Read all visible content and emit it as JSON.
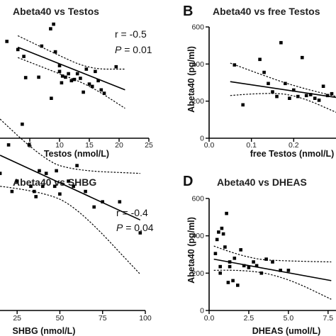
{
  "chart_data": [
    {
      "id": "A",
      "type": "scatter",
      "title": "Abeta40 vs Testos",
      "xlabel": "Testos (nmol/L)",
      "xlim": [
        0,
        25
      ],
      "xticks": [
        "5",
        "10",
        "15",
        "20",
        "25"
      ],
      "ylim": [
        0,
        600
      ],
      "stats": {
        "r": "r = -0.5",
        "p_label": "P",
        "p_value": " = 0.01"
      },
      "points": [
        [
          3,
          385
        ],
        [
          4,
          355
        ],
        [
          6.5,
          265
        ],
        [
          7,
          400
        ],
        [
          8.5,
          475
        ],
        [
          9,
          495
        ],
        [
          9.3,
          375
        ],
        [
          10,
          315
        ],
        [
          10,
          290
        ],
        [
          10.5,
          270
        ],
        [
          11,
          265
        ],
        [
          11.5,
          280
        ],
        [
          12,
          250
        ],
        [
          12.5,
          255
        ],
        [
          13,
          280
        ],
        [
          13.5,
          260
        ],
        [
          14,
          200
        ],
        [
          14.5,
          300
        ],
        [
          15,
          235
        ],
        [
          15.5,
          225
        ],
        [
          16,
          290
        ],
        [
          16.5,
          250
        ],
        [
          17,
          210
        ],
        [
          17.5,
          195
        ],
        [
          19.5,
          310
        ]
      ],
      "fit": [
        [
          3,
          395
        ],
        [
          21,
          210
        ]
      ],
      "ci_upper": [
        [
          3,
          445
        ],
        [
          9,
          370
        ],
        [
          15,
          300
        ],
        [
          21,
          300
        ]
      ],
      "ci_lower": [
        [
          3,
          350
        ],
        [
          9,
          290
        ],
        [
          15,
          230
        ],
        [
          21,
          130
        ]
      ]
    },
    {
      "id": "B",
      "type": "scatter",
      "title": "Abeta40 vs free Testos",
      "panel_letter": "B",
      "xlabel": "free Testos (nmol/L)",
      "ylabel": "Abeta40 (pg/ml)",
      "xlim": [
        0,
        0.3
      ],
      "xticks": [
        "0.0",
        "0.1",
        "0.2"
      ],
      "yticks": [
        "0",
        "200",
        "400",
        "600"
      ],
      "ylim": [
        0,
        600
      ],
      "points": [
        [
          0.06,
          395
        ],
        [
          0.08,
          180
        ],
        [
          0.12,
          425
        ],
        [
          0.13,
          355
        ],
        [
          0.14,
          295
        ],
        [
          0.15,
          250
        ],
        [
          0.16,
          225
        ],
        [
          0.17,
          515
        ],
        [
          0.18,
          295
        ],
        [
          0.19,
          215
        ],
        [
          0.2,
          260
        ],
        [
          0.21,
          225
        ],
        [
          0.22,
          435
        ],
        [
          0.23,
          230
        ],
        [
          0.24,
          235
        ],
        [
          0.25,
          215
        ],
        [
          0.26,
          205
        ],
        [
          0.27,
          280
        ],
        [
          0.28,
          230
        ],
        [
          0.29,
          240
        ]
      ],
      "fit": [
        [
          0.05,
          305
        ],
        [
          0.3,
          220
        ]
      ],
      "ci_upper": [
        [
          0.05,
          405
        ],
        [
          0.15,
          320
        ],
        [
          0.22,
          270
        ],
        [
          0.3,
          225
        ]
      ],
      "ci_lower": [
        [
          0.05,
          230
        ],
        [
          0.15,
          250
        ],
        [
          0.22,
          220
        ],
        [
          0.3,
          140
        ]
      ]
    },
    {
      "id": "C",
      "type": "scatter",
      "title": "Abeta40 vs SHBG",
      "xlabel": "SHBG (nmol/L)",
      "xlim": [
        10,
        100
      ],
      "xticks": [
        "25",
        "50",
        "75",
        "100"
      ],
      "ylim": [
        0,
        600
      ],
      "stats": {
        "r": "r = -0.4",
        "p_label": "P",
        "p_value": " = 0.04"
      },
      "points": [
        [
          15,
          265
        ],
        [
          19,
          520
        ],
        [
          20,
          320
        ],
        [
          22,
          230
        ],
        [
          25,
          250
        ],
        [
          28,
          360
        ],
        [
          30,
          450
        ],
        [
          32,
          320
        ],
        [
          33,
          240
        ],
        [
          35,
          230
        ],
        [
          36,
          220
        ],
        [
          38,
          270
        ],
        [
          40,
          240
        ],
        [
          42,
          265
        ],
        [
          45,
          410
        ],
        [
          47,
          240
        ],
        [
          48,
          270
        ],
        [
          50,
          225
        ],
        [
          51,
          440
        ],
        [
          55,
          250
        ],
        [
          58,
          240
        ],
        [
          60,
          280
        ],
        [
          65,
          230
        ],
        [
          70,
          200
        ],
        [
          75,
          210
        ],
        [
          85,
          210
        ],
        [
          97,
          150
        ]
      ],
      "fit": [
        [
          15,
          300
        ],
        [
          97,
          175
        ]
      ],
      "ci_upper": [
        [
          15,
          370
        ],
        [
          40,
          290
        ],
        [
          60,
          270
        ],
        [
          97,
          265
        ]
      ],
      "ci_lower": [
        [
          15,
          240
        ],
        [
          40,
          230
        ],
        [
          60,
          200
        ],
        [
          97,
          70
        ]
      ]
    },
    {
      "id": "D",
      "type": "scatter",
      "title": "Abeta40 vs DHEAS",
      "panel_letter": "D",
      "xlabel": "DHEAS (umol/L)",
      "ylabel": "Abeta40 (pg/ml)",
      "xlim": [
        0,
        8
      ],
      "xticks": [
        "0.0",
        "2.5",
        "5.0",
        "7.5"
      ],
      "yticks": [
        "0",
        "200",
        "400",
        "600"
      ],
      "ylim": [
        0,
        600
      ],
      "points": [
        [
          0.4,
          305
        ],
        [
          0.5,
          380
        ],
        [
          0.6,
          420
        ],
        [
          0.7,
          235
        ],
        [
          0.7,
          200
        ],
        [
          0.8,
          440
        ],
        [
          0.9,
          410
        ],
        [
          1,
          340
        ],
        [
          1.1,
          520
        ],
        [
          1.2,
          150
        ],
        [
          1.3,
          260
        ],
        [
          1.3,
          235
        ],
        [
          1.5,
          160
        ],
        [
          1.6,
          280
        ],
        [
          1.8,
          135
        ],
        [
          2,
          325
        ],
        [
          2.2,
          240
        ],
        [
          2.5,
          230
        ],
        [
          2.8,
          260
        ],
        [
          3,
          240
        ],
        [
          3.3,
          200
        ],
        [
          3.6,
          275
        ],
        [
          4,
          260
        ],
        [
          4.5,
          215
        ],
        [
          5,
          215
        ]
      ],
      "fit": [
        [
          0.3,
          275
        ],
        [
          7.7,
          160
        ]
      ],
      "ci_upper": [
        [
          0.3,
          345
        ],
        [
          2.5,
          275
        ],
        [
          5,
          265
        ],
        [
          7.7,
          260
        ]
      ],
      "ci_lower": [
        [
          0.3,
          215
        ],
        [
          2.5,
          220
        ],
        [
          5,
          170
        ],
        [
          7.7,
          60
        ]
      ]
    }
  ]
}
